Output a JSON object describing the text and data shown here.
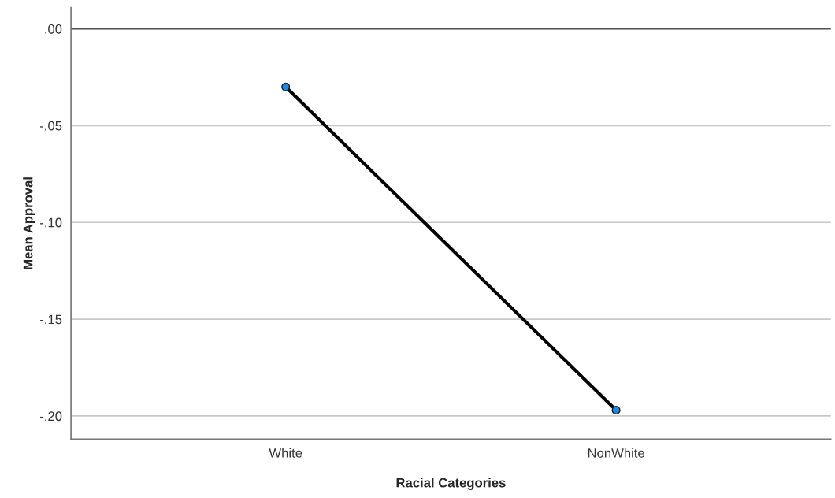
{
  "chart_data": {
    "type": "line",
    "xlabel": "Racial Categories",
    "ylabel": "Mean Approval",
    "categories": [
      "White",
      "NonWhite"
    ],
    "series": [
      {
        "color": "#000000",
        "values": [
          -0.03,
          -0.197
        ]
      }
    ],
    "marker": "circle",
    "ylim": [
      -0.212,
      0.011
    ],
    "yticks": [
      {
        "value": 0,
        "label": ".00"
      },
      {
        "value": -0.05,
        "label": "-.05"
      },
      {
        "value": -0.1,
        "label": "-.10"
      },
      {
        "value": -0.15,
        "label": "-.15"
      },
      {
        "value": -0.2,
        "label": "-.20"
      }
    ],
    "grid": "y",
    "ref_lines": [
      {
        "axis": "y",
        "value": 0,
        "color": "#555555"
      }
    ]
  }
}
